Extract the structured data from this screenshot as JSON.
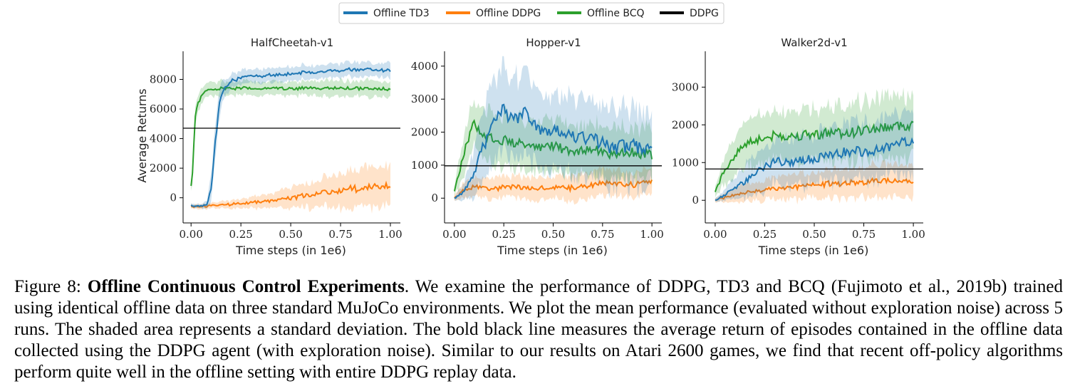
{
  "legend": [
    {
      "label": "Offline TD3",
      "color": "#1f77b4"
    },
    {
      "label": "Offline DDPG",
      "color": "#ff7f0e"
    },
    {
      "label": "Offline BCQ",
      "color": "#2ca02c"
    },
    {
      "label": "DDPG",
      "color": "#000000"
    }
  ],
  "chart_data": [
    {
      "type": "line",
      "title": "HalfCheetah-v1",
      "xlabel": "Time steps (in 1e6)",
      "ylabel": "Average Returns",
      "xlim": [
        -0.04,
        1.05
      ],
      "ylim": [
        -1700,
        9900
      ],
      "xticks": [
        "0.00",
        "0.25",
        "0.50",
        "0.75",
        "1.00"
      ],
      "yticks": [
        "0",
        "2000",
        "4000",
        "6000",
        "8000"
      ],
      "hline": 4700,
      "series": [
        {
          "name": "Offline TD3",
          "color": "#1f77b4",
          "x": [
            0,
            0.05,
            0.08,
            0.1,
            0.12,
            0.14,
            0.16,
            0.2,
            0.25,
            0.3,
            0.4,
            0.5,
            0.6,
            0.7,
            0.8,
            0.9,
            1.0
          ],
          "y": [
            -550,
            -550,
            -450,
            500,
            3500,
            6200,
            7300,
            7900,
            8100,
            8200,
            8300,
            8400,
            8500,
            8550,
            8650,
            8700,
            8600
          ],
          "std": [
            150,
            150,
            300,
            900,
            1200,
            1000,
            700,
            500,
            500,
            500,
            500,
            500,
            500,
            500,
            500,
            500,
            500
          ]
        },
        {
          "name": "Offline DDPG",
          "color": "#ff7f0e",
          "x": [
            0,
            0.1,
            0.2,
            0.3,
            0.4,
            0.5,
            0.6,
            0.7,
            0.8,
            0.9,
            1.0
          ],
          "y": [
            -600,
            -550,
            -450,
            -350,
            -200,
            0,
            200,
            400,
            600,
            700,
            850
          ],
          "std": [
            150,
            200,
            300,
            400,
            500,
            700,
            900,
            1100,
            1300,
            1400,
            1500
          ]
        },
        {
          "name": "Offline BCQ",
          "color": "#2ca02c",
          "x": [
            0,
            0.01,
            0.02,
            0.03,
            0.05,
            0.08,
            0.1,
            0.15,
            0.2,
            0.3,
            0.4,
            0.5,
            0.6,
            0.7,
            0.8,
            0.9,
            1.0
          ],
          "y": [
            800,
            2200,
            5400,
            6200,
            6900,
            7200,
            7300,
            7400,
            7400,
            7400,
            7400,
            7350,
            7400,
            7400,
            7350,
            7400,
            7300
          ],
          "std": [
            400,
            800,
            700,
            600,
            500,
            500,
            500,
            500,
            500,
            500,
            500,
            500,
            500,
            600,
            500,
            600,
            500
          ]
        }
      ]
    },
    {
      "type": "line",
      "title": "Hopper-v1",
      "xlabel": "Time steps (in 1e6)",
      "ylabel": "",
      "xlim": [
        -0.05,
        1.05
      ],
      "ylim": [
        -750,
        4450
      ],
      "xticks": [
        "0.00",
        "0.25",
        "0.50",
        "0.75",
        "1.00"
      ],
      "yticks": [
        "0",
        "1000",
        "2000",
        "3000",
        "4000"
      ],
      "hline": 980,
      "series": [
        {
          "name": "Offline TD3",
          "color": "#1f77b4",
          "x": [
            0,
            0.05,
            0.1,
            0.15,
            0.2,
            0.25,
            0.3,
            0.35,
            0.4,
            0.45,
            0.5,
            0.6,
            0.7,
            0.8,
            0.9,
            1.0
          ],
          "y": [
            0,
            200,
            800,
            1600,
            2500,
            2700,
            2300,
            2600,
            2200,
            2000,
            2100,
            1900,
            1800,
            1500,
            1600,
            1500
          ],
          "std": [
            50,
            300,
            800,
            1200,
            1300,
            1300,
            1300,
            1300,
            1300,
            1200,
            1200,
            1200,
            1200,
            1200,
            1200,
            1100
          ]
        },
        {
          "name": "Offline DDPG",
          "color": "#ff7f0e",
          "x": [
            0,
            0.05,
            0.1,
            0.2,
            0.3,
            0.4,
            0.5,
            0.6,
            0.7,
            0.75,
            0.8,
            0.9,
            1.0
          ],
          "y": [
            0,
            250,
            350,
            300,
            350,
            300,
            350,
            300,
            400,
            500,
            450,
            400,
            500
          ],
          "std": [
            100,
            250,
            300,
            350,
            350,
            350,
            350,
            400,
            400,
            450,
            400,
            400,
            400
          ]
        },
        {
          "name": "Offline BCQ",
          "color": "#2ca02c",
          "x": [
            0,
            0.02,
            0.05,
            0.08,
            0.1,
            0.15,
            0.2,
            0.3,
            0.4,
            0.5,
            0.6,
            0.7,
            0.8,
            0.9,
            1.0
          ],
          "y": [
            200,
            700,
            1400,
            2000,
            2300,
            1900,
            1800,
            1700,
            1500,
            1600,
            1400,
            1500,
            1300,
            1400,
            1300
          ],
          "std": [
            150,
            400,
            600,
            700,
            700,
            800,
            800,
            800,
            800,
            800,
            800,
            800,
            800,
            800,
            800
          ]
        }
      ]
    },
    {
      "type": "line",
      "title": "Walker2d-v1",
      "xlabel": "Time steps (in 1e6)",
      "ylabel": "",
      "xlim": [
        -0.05,
        1.05
      ],
      "ylim": [
        -600,
        3950
      ],
      "xticks": [
        "0.00",
        "0.25",
        "0.50",
        "0.75",
        "1.00"
      ],
      "yticks": [
        "0",
        "1000",
        "2000",
        "3000"
      ],
      "hline": 830,
      "series": [
        {
          "name": "Offline TD3",
          "color": "#1f77b4",
          "x": [
            0,
            0.05,
            0.1,
            0.15,
            0.2,
            0.25,
            0.3,
            0.4,
            0.5,
            0.6,
            0.7,
            0.8,
            0.9,
            1.0
          ],
          "y": [
            0,
            150,
            350,
            500,
            700,
            900,
            1000,
            1050,
            1100,
            1200,
            1300,
            1300,
            1450,
            1600
          ],
          "std": [
            50,
            150,
            300,
            450,
            550,
            600,
            600,
            650,
            700,
            750,
            800,
            800,
            850,
            900
          ]
        },
        {
          "name": "Offline DDPG",
          "color": "#ff7f0e",
          "x": [
            0,
            0.1,
            0.2,
            0.3,
            0.4,
            0.5,
            0.6,
            0.7,
            0.8,
            0.9,
            1.0
          ],
          "y": [
            0,
            150,
            250,
            300,
            350,
            400,
            450,
            450,
            500,
            550,
            500
          ],
          "std": [
            50,
            200,
            250,
            300,
            350,
            350,
            400,
            400,
            450,
            450,
            450
          ]
        },
        {
          "name": "Offline BCQ",
          "color": "#2ca02c",
          "x": [
            0,
            0.03,
            0.06,
            0.1,
            0.15,
            0.2,
            0.3,
            0.4,
            0.5,
            0.6,
            0.7,
            0.8,
            0.9,
            1.0
          ],
          "y": [
            200,
            600,
            900,
            1200,
            1500,
            1600,
            1700,
            1700,
            1750,
            1800,
            1800,
            1900,
            1950,
            2000
          ],
          "std": [
            150,
            300,
            450,
            550,
            600,
            650,
            700,
            700,
            750,
            750,
            800,
            850,
            850,
            850
          ]
        }
      ]
    }
  ],
  "caption": {
    "prefix": "Figure 8: ",
    "bold": "Offline Continuous Control Experiments",
    "body": ". We examine the performance of DDPG, TD3 and BCQ (Fujimoto et al., 2019b) trained using identical offline data on three standard MuJoCo environments. We plot the mean performance (evaluated without exploration noise) across 5 runs.  The shaded area represents a standard deviation.  The bold black line measures the average return of episodes contained in the offline data collected using the DDPG agent (with exploration noise). Similar to our results on Atari 2600 games, we find that recent off-policy algorithms perform quite well in the offline setting with entire DDPG replay data."
  }
}
